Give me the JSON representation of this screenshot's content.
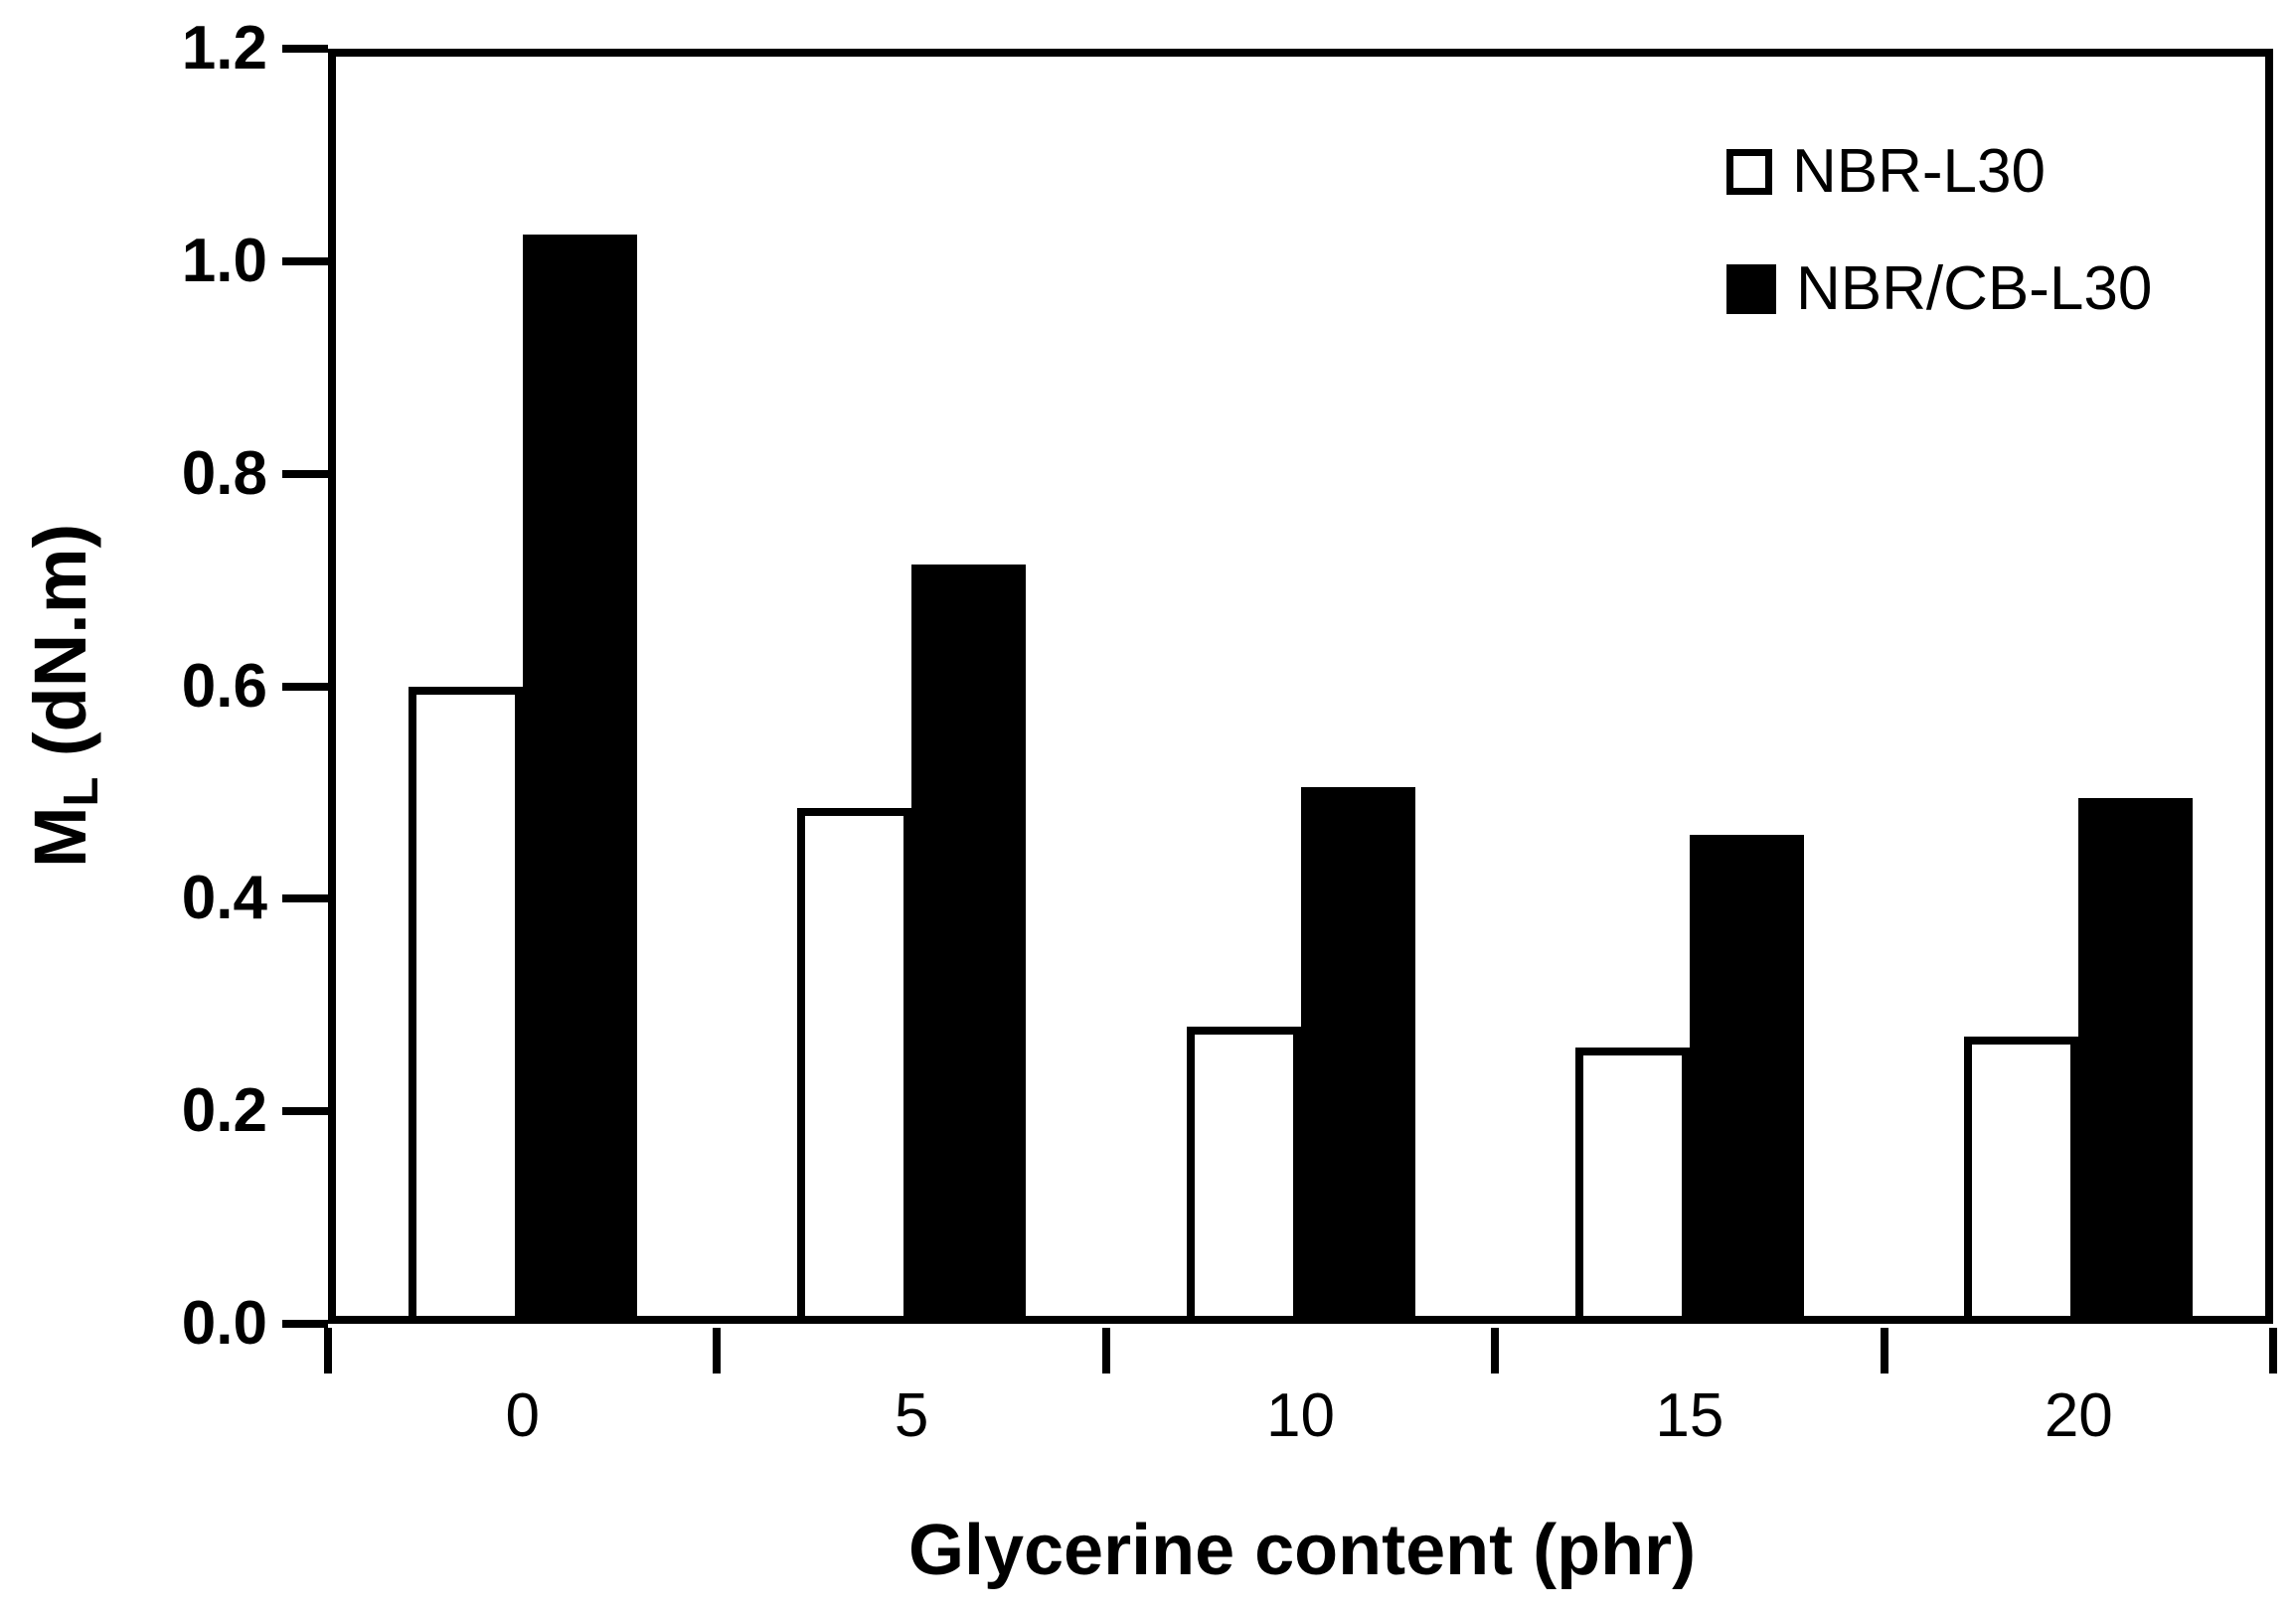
{
  "chart_data": {
    "type": "bar",
    "title": "",
    "categories": [
      "0",
      "5",
      "10",
      "15",
      "20"
    ],
    "series": [
      {
        "name": "NBR-L30",
        "fill": "#ffffff",
        "border": "#000000",
        "values": [
          0.6,
          0.485,
          0.28,
          0.26,
          0.27
        ]
      },
      {
        "name": "NBR/CB-L30",
        "fill": "#000000",
        "border": "#000000",
        "values": [
          1.025,
          0.715,
          0.505,
          0.46,
          0.495
        ]
      }
    ],
    "xlabel": "Glycerine content (phr)",
    "ylabel_parts": {
      "main": "M",
      "sub": "L",
      "rest": " (dN.m)"
    },
    "ylabel_plain": "ML (dN.m)",
    "ylim": [
      0,
      1.2
    ],
    "ytick_step": 0.2,
    "yticks": [
      "0.0",
      "0.2",
      "0.4",
      "0.6",
      "0.8",
      "1.0",
      "1.2"
    ],
    "grid": false,
    "legend_position": "top-right",
    "colors": {
      "axis": "#000000",
      "background": "#ffffff",
      "bar_open": "#ffffff",
      "bar_filled": "#000000"
    }
  }
}
